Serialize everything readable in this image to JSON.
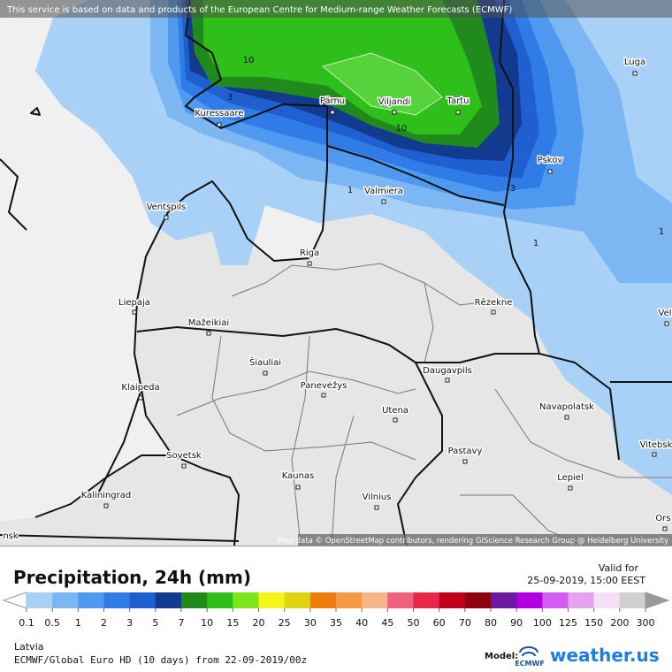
{
  "header": {
    "notice": "This service is based on data and products of the European Centre for Medium-range Weather Forecasts (ECMWF)"
  },
  "map": {
    "cities": [
      "Luga",
      "Pärnu",
      "Viljandi",
      "Tartu",
      "Kuressaare",
      "Pskov",
      "Valmiera",
      "Ventspils",
      "Riga",
      "Liepaja",
      "Rēzekne",
      "Mažeikiai",
      "Šiauliai",
      "Klaipeda",
      "Panevėžys",
      "Daugavpils",
      "Navapolatsk",
      "Utena",
      "Vitebsk",
      "Sovetsk",
      "Kaunas",
      "Pastavy",
      "Lepiel",
      "Kaliningrad",
      "Vilnius",
      "Ors",
      "Vel",
      "nsk"
    ],
    "contour_labels": [
      3,
      10,
      10,
      1,
      3,
      1,
      1
    ],
    "attribution": "Map data © OpenStreetMap contributors, rendering GIScience Research Group @ Heidelberg University"
  },
  "legend": {
    "title": "Precipitation, 24h (mm)",
    "valid_label": "Valid for",
    "valid_time": "25-09-2019, 15:00 EEST",
    "ticks": [
      0.1,
      0.5,
      1,
      2,
      3,
      5,
      7,
      10,
      15,
      20,
      25,
      30,
      35,
      40,
      45,
      50,
      60,
      70,
      80,
      90,
      100,
      125,
      150,
      200,
      300
    ],
    "colors": [
      "#a9d1f7",
      "#7cb7f3",
      "#4f9af0",
      "#2f7ce6",
      "#1f5fd0",
      "#123a8f",
      "#208a1d",
      "#2fbf1a",
      "#7ee51a",
      "#f4f519",
      "#dfd40e",
      "#f07c0a",
      "#f29b43",
      "#f7b488",
      "#f0607a",
      "#e8264a",
      "#c00018",
      "#8e0010",
      "#6b1aa0",
      "#b000e0",
      "#d45cf0",
      "#e6a2f2",
      "#f6e0f6",
      "#cfcfcf"
    ]
  },
  "footer": {
    "region": "Latvia",
    "model_run": "ECMWF/Global Euro HD (10 days) from 22-09-2019/00z",
    "model_label": "Model:",
    "model_logo": "ECMWF",
    "brand": "weather.us"
  }
}
